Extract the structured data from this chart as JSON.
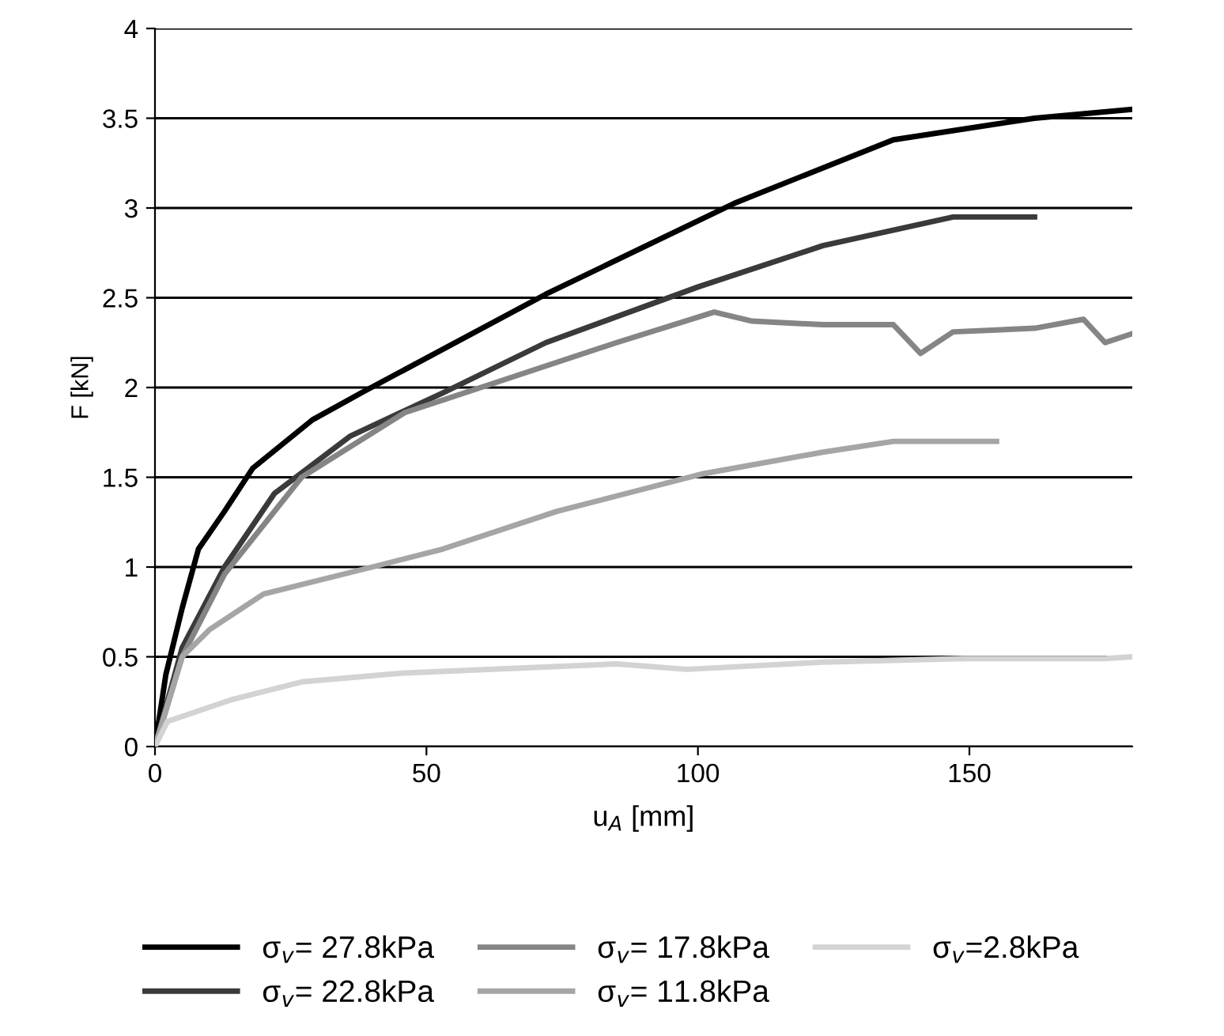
{
  "chart_data": {
    "type": "line",
    "xlabel": "u$_{A}$ [mm]",
    "ylabel": "F [kN]",
    "xlim": [
      0,
      180
    ],
    "xticks": [
      0,
      50,
      100,
      150
    ],
    "ylim": [
      0,
      4
    ],
    "yticks": [
      0,
      0.5,
      1,
      1.5,
      2,
      2.5,
      3,
      3.5,
      4
    ],
    "grid": "y",
    "legend": "bottom",
    "marker": "none",
    "line_style": "solid",
    "series": [
      {
        "name": "σ$_{v}$= 27.8kPa",
        "color": "#000000",
        "x": [
          0,
          2,
          5,
          8,
          12.8,
          18,
          29,
          38,
          72,
          107,
          136,
          162,
          180
        ],
        "values": [
          0,
          0.4,
          0.77,
          1.1,
          1.31,
          1.55,
          1.82,
          1.97,
          2.52,
          3.03,
          3.38,
          3.5,
          3.55
        ]
      },
      {
        "name": "σ$_{v}$= 22.8kPa",
        "color": "#3a3a3a",
        "x": [
          0,
          5,
          12.8,
          22,
          36,
          53,
          72,
          100,
          123,
          147,
          162
        ],
        "values": [
          0,
          0.55,
          1.0,
          1.41,
          1.73,
          1.97,
          2.25,
          2.56,
          2.79,
          2.95,
          2.95
        ]
      },
      {
        "name": "σ$_{v}$= 17.8kPa",
        "color": "#858585",
        "x": [
          0,
          5,
          12.8,
          27,
          46,
          60,
          85,
          103,
          110,
          123,
          136,
          141,
          147,
          162,
          171,
          175,
          180
        ],
        "values": [
          0,
          0.5,
          0.96,
          1.5,
          1.86,
          2.0,
          2.25,
          2.42,
          2.37,
          2.35,
          2.35,
          2.19,
          2.31,
          2.33,
          2.38,
          2.25,
          2.3
        ]
      },
      {
        "name": "σ$_{v}$= 11.8kPa",
        "color": "#a5a5a5",
        "x": [
          0,
          5,
          10,
          20,
          40,
          53,
          74,
          101,
          123,
          136,
          155
        ],
        "values": [
          0,
          0.5,
          0.65,
          0.85,
          1.0,
          1.1,
          1.31,
          1.52,
          1.64,
          1.7,
          1.7
        ]
      },
      {
        "name": "σ$_{v}$=2.8kPa",
        "color": "#d3d3d3",
        "x": [
          0,
          2.3,
          14,
          27,
          46,
          85,
          98,
          123,
          149,
          175,
          180
        ],
        "values": [
          0,
          0.14,
          0.26,
          0.36,
          0.41,
          0.46,
          0.43,
          0.47,
          0.49,
          0.49,
          0.5
        ]
      }
    ]
  }
}
